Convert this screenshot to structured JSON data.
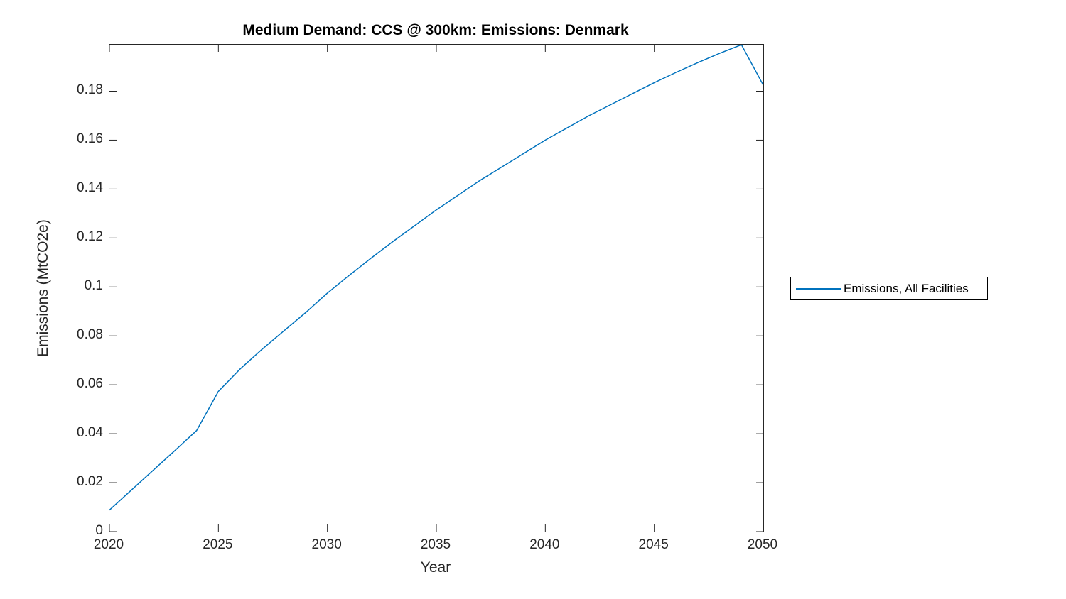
{
  "figure": {
    "title": "Medium Demand: CCS @ 300km: Emissions: Denmark",
    "xlabel": "Year",
    "ylabel": "Emissions (MtCO2e)",
    "background_color": "#ffffff",
    "axes_color": "#262626",
    "line_color": "#0072BD"
  },
  "legend": {
    "label": "Emissions, All Facilities",
    "border_color": "#000000",
    "position": "outside-right"
  },
  "chart_data": {
    "type": "line",
    "title": "Medium Demand: CCS @ 300km: Emissions: Denmark",
    "xlabel": "Year",
    "ylabel": "Emissions (MtCO2e)",
    "grid": false,
    "xlim": [
      2020,
      2050
    ],
    "ylim": [
      0,
      0.199
    ],
    "xticks": [
      2020,
      2025,
      2030,
      2035,
      2040,
      2045,
      2050
    ],
    "xtick_labels": [
      "2020",
      "2025",
      "2030",
      "2035",
      "2040",
      "2045",
      "2050"
    ],
    "yticks": [
      0,
      0.02,
      0.04,
      0.06,
      0.08,
      0.1,
      0.12,
      0.14,
      0.16,
      0.18
    ],
    "ytick_labels": [
      "0",
      "0.02",
      "0.04",
      "0.06",
      "0.08",
      "0.1",
      "0.12",
      "0.14",
      "0.16",
      "0.18"
    ],
    "legend_position": "right-outside",
    "series": [
      {
        "name": "Emissions, All Facilities",
        "color": "#0072BD",
        "x": [
          2020,
          2021,
          2022,
          2023,
          2024,
          2025,
          2026,
          2027,
          2028,
          2029,
          2030,
          2031,
          2032,
          2033,
          2034,
          2035,
          2036,
          2037,
          2038,
          2039,
          2040,
          2041,
          2042,
          2043,
          2044,
          2045,
          2046,
          2047,
          2048,
          2049,
          2050
        ],
        "y": [
          0.0088,
          0.0169,
          0.025,
          0.0331,
          0.0413,
          0.0573,
          0.0665,
          0.0745,
          0.082,
          0.0895,
          0.0975,
          0.1047,
          0.1117,
          0.1185,
          0.125,
          0.1315,
          0.1375,
          0.1435,
          0.149,
          0.1545,
          0.16,
          0.165,
          0.17,
          0.1745,
          0.179,
          0.1835,
          0.1877,
          0.1917,
          0.1955,
          0.199,
          0.1825
        ]
      }
    ]
  }
}
